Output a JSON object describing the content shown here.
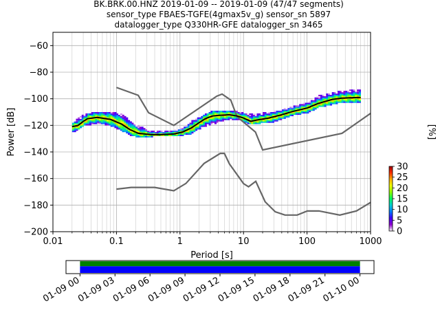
{
  "title": {
    "line1": "BK.BRK.00.HNZ   2019-01-09 -- 2019-01-09  (47/47 segments)",
    "line2": "sensor_type FBAES-TGFE(4gmax5v_g) sensor_sn 5897",
    "line3": "datalogger_type Q330HR-GFE datalogger_sn 3465"
  },
  "chart_data": [
    {
      "type": "heatmap",
      "subtype": "probabilistic-power-spectral-density",
      "xlabel": "Period [s]",
      "ylabel": "Power [dB]",
      "xscale": "log",
      "xlim": [
        0.01,
        1000
      ],
      "ylim": [
        -200,
        -50
      ],
      "grid": true,
      "x_ticks": [
        {
          "value": 0.01,
          "label": "0.01"
        },
        {
          "value": 0.1,
          "label": "0.1"
        },
        {
          "value": 1,
          "label": "1"
        },
        {
          "value": 10,
          "label": "10"
        },
        {
          "value": 100,
          "label": "100"
        },
        {
          "value": 1000,
          "label": "1000"
        }
      ],
      "y_ticks": [
        {
          "value": -60,
          "label": "−60"
        },
        {
          "value": -80,
          "label": "−80"
        },
        {
          "value": -100,
          "label": "−100"
        },
        {
          "value": -120,
          "label": "−120"
        },
        {
          "value": -140,
          "label": "−140"
        },
        {
          "value": -160,
          "label": "−160"
        },
        {
          "value": -180,
          "label": "−180"
        },
        {
          "value": -200,
          "label": "−200"
        }
      ],
      "noise_models": [
        {
          "id": "nhnm",
          "color": "#666666",
          "points": [
            [
              0.1,
              -91.5
            ],
            [
              0.22,
              -97.4
            ],
            [
              0.32,
              -110.5
            ],
            [
              0.8,
              -120
            ],
            [
              3.8,
              -98
            ],
            [
              4.6,
              -96.5
            ],
            [
              6.3,
              -101
            ],
            [
              7.9,
              -113.5
            ],
            [
              15.4,
              -125
            ],
            [
              20,
              -138.5
            ],
            [
              354.8,
              -126
            ],
            [
              1000,
              -111
            ]
          ]
        },
        {
          "id": "nlnm",
          "color": "#666666",
          "points": [
            [
              0.1,
              -168
            ],
            [
              0.17,
              -166.7
            ],
            [
              0.4,
              -166.7
            ],
            [
              0.8,
              -169.2
            ],
            [
              1.24,
              -163.7
            ],
            [
              2.4,
              -148.6
            ],
            [
              4.3,
              -141.1
            ],
            [
              5,
              -141.1
            ],
            [
              6,
              -149
            ],
            [
              10,
              -163.8
            ],
            [
              12,
              -166.2
            ],
            [
              15.6,
              -162.1
            ],
            [
              21.9,
              -177.5
            ],
            [
              31.6,
              -185
            ],
            [
              45,
              -187.5
            ],
            [
              70,
              -187.5
            ],
            [
              101,
              -184.4
            ],
            [
              154,
              -184.4
            ],
            [
              328,
              -187.5
            ],
            [
              600,
              -184.4
            ],
            [
              1000,
              -178
            ]
          ]
        }
      ],
      "median": {
        "color": "#000000",
        "points": [
          [
            0.02,
            -121
          ],
          [
            0.025,
            -120
          ],
          [
            0.03,
            -117
          ],
          [
            0.035,
            -115
          ],
          [
            0.05,
            -114
          ],
          [
            0.08,
            -115.5
          ],
          [
            0.12,
            -119
          ],
          [
            0.16,
            -123
          ],
          [
            0.22,
            -126
          ],
          [
            0.35,
            -127
          ],
          [
            0.5,
            -127
          ],
          [
            0.8,
            -126.5
          ],
          [
            1.1,
            -125
          ],
          [
            1.5,
            -122
          ],
          [
            2,
            -118
          ],
          [
            2.5,
            -115
          ],
          [
            3.2,
            -113
          ],
          [
            4,
            -112.5
          ],
          [
            6,
            -112
          ],
          [
            8,
            -113
          ],
          [
            10,
            -114.5
          ],
          [
            13,
            -117
          ],
          [
            16,
            -116
          ],
          [
            25,
            -114.5
          ],
          [
            40,
            -112
          ],
          [
            60,
            -109.5
          ],
          [
            100,
            -107
          ],
          [
            150,
            -103.5
          ],
          [
            250,
            -100.5
          ],
          [
            350,
            -99.5
          ],
          [
            700,
            -99
          ]
        ]
      },
      "density_band": [
        [
          0.02,
          -125,
          -118
        ],
        [
          0.03,
          -120,
          -112
        ],
        [
          0.05,
          -118,
          -110
        ],
        [
          0.08,
          -120,
          -110
        ],
        [
          0.12,
          -124,
          -112
        ],
        [
          0.16,
          -127,
          -117
        ],
        [
          0.22,
          -129,
          -121
        ],
        [
          0.35,
          -128,
          -125
        ],
        [
          0.8,
          -128,
          -124
        ],
        [
          1.1,
          -127,
          -122
        ],
        [
          1.5,
          -126,
          -117
        ],
        [
          2,
          -122,
          -114
        ],
        [
          3,
          -119,
          -110
        ],
        [
          5,
          -116,
          -109
        ],
        [
          8,
          -115,
          -110
        ],
        [
          12,
          -119,
          -112
        ],
        [
          18,
          -118,
          -111
        ],
        [
          30,
          -117,
          -110
        ],
        [
          60,
          -112,
          -106
        ],
        [
          100,
          -110,
          -103
        ],
        [
          150,
          -106,
          -98
        ],
        [
          300,
          -103,
          -95
        ],
        [
          700,
          -102,
          -93
        ]
      ]
    },
    {
      "type": "heatmap",
      "subtype": "colorbar",
      "label": "[%]",
      "range": [
        0,
        30
      ],
      "ticks": [
        {
          "value": 0,
          "label": "0"
        },
        {
          "value": 5,
          "label": "5"
        },
        {
          "value": 10,
          "label": "10"
        },
        {
          "value": 15,
          "label": "15"
        },
        {
          "value": 20,
          "label": "20"
        },
        {
          "value": 25,
          "label": "25"
        },
        {
          "value": 30,
          "label": "30"
        }
      ],
      "colormap": [
        "#ffffff",
        "#9000d0",
        "#4000ff",
        "#0080ff",
        "#00d0d0",
        "#00ff60",
        "#90ff00",
        "#f0ff00",
        "#ffb000",
        "#ff3000",
        "#a00000"
      ]
    },
    {
      "type": "bar",
      "subtype": "data-coverage-timeline",
      "range": [
        "2019-01-09 00:00",
        "2019-01-10 00:00"
      ],
      "tick_labels": [
        "01-09 00",
        "01-09 03",
        "01-09 06",
        "01-09 09",
        "01-09 12",
        "01-09 15",
        "01-09 18",
        "01-09 21",
        "01-10 00"
      ],
      "tick_hours": [
        0,
        3,
        6,
        9,
        12,
        15,
        18,
        21,
        24
      ],
      "axis_hours": [
        -1.2,
        25.2
      ],
      "series": [
        {
          "color": "#008000",
          "start_hour": 0,
          "end_hour": 24
        },
        {
          "color": "#0000ff",
          "start_hour": 0,
          "end_hour": 24
        }
      ]
    }
  ]
}
